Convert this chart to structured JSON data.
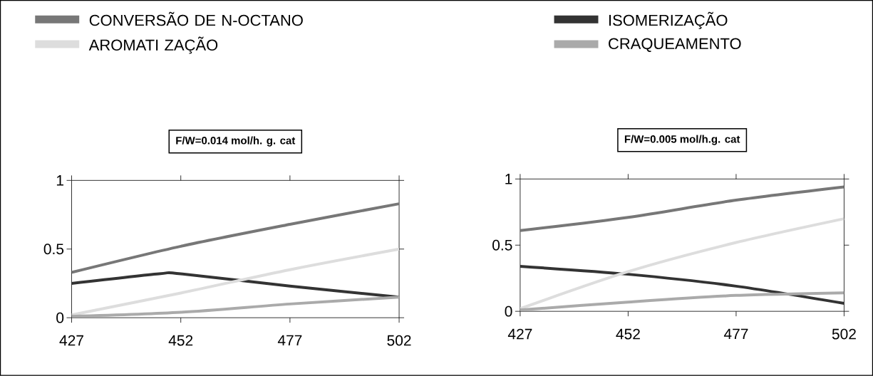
{
  "chart_data": [
    {
      "type": "line",
      "title": "F/W=0.014 mol/h. g. cat",
      "x": [
        427,
        452,
        477,
        502
      ],
      "xlim": [
        427,
        502
      ],
      "ylim": [
        0,
        1
      ],
      "xticks": [
        427,
        452,
        477,
        502
      ],
      "yticks": [
        0,
        0.5,
        1
      ],
      "legend": "top",
      "series": [
        {
          "name": "CONVERSÃO DE N-OCTANO",
          "color": "#777777",
          "values": [
            0.33,
            0.52,
            0.68,
            0.83
          ]
        },
        {
          "name": "ISOMERIZAÇÃO",
          "color": "#333333",
          "x": [
            427,
            447,
            452,
            477,
            502
          ],
          "values": [
            0.25,
            0.32,
            0.32,
            0.23,
            0.15
          ]
        },
        {
          "name": "AROMATI ZAÇÃO",
          "color": "#dddddd",
          "values": [
            0.02,
            0.18,
            0.35,
            0.5
          ]
        },
        {
          "name": "CRAQUEAMENTO",
          "color": "#aaaaaa",
          "values": [
            0.01,
            0.04,
            0.1,
            0.15
          ]
        }
      ]
    },
    {
      "type": "line",
      "title": "F/W=0.005 mol/h.g. cat",
      "x": [
        427,
        452,
        477,
        502
      ],
      "xlim": [
        427,
        502
      ],
      "ylim": [
        0,
        1
      ],
      "xticks": [
        427,
        452,
        477,
        502
      ],
      "yticks": [
        0,
        0.5,
        1
      ],
      "series": [
        {
          "color": "#777777",
          "values": [
            0.61,
            0.71,
            0.84,
            0.94
          ]
        },
        {
          "color": "#333333",
          "values": [
            0.34,
            0.28,
            0.19,
            0.06
          ]
        },
        {
          "color": "#dddddd",
          "values": [
            0.02,
            0.3,
            0.52,
            0.7
          ]
        },
        {
          "color": "#aaaaaa",
          "values": [
            0.01,
            0.07,
            0.12,
            0.14
          ]
        }
      ]
    }
  ]
}
